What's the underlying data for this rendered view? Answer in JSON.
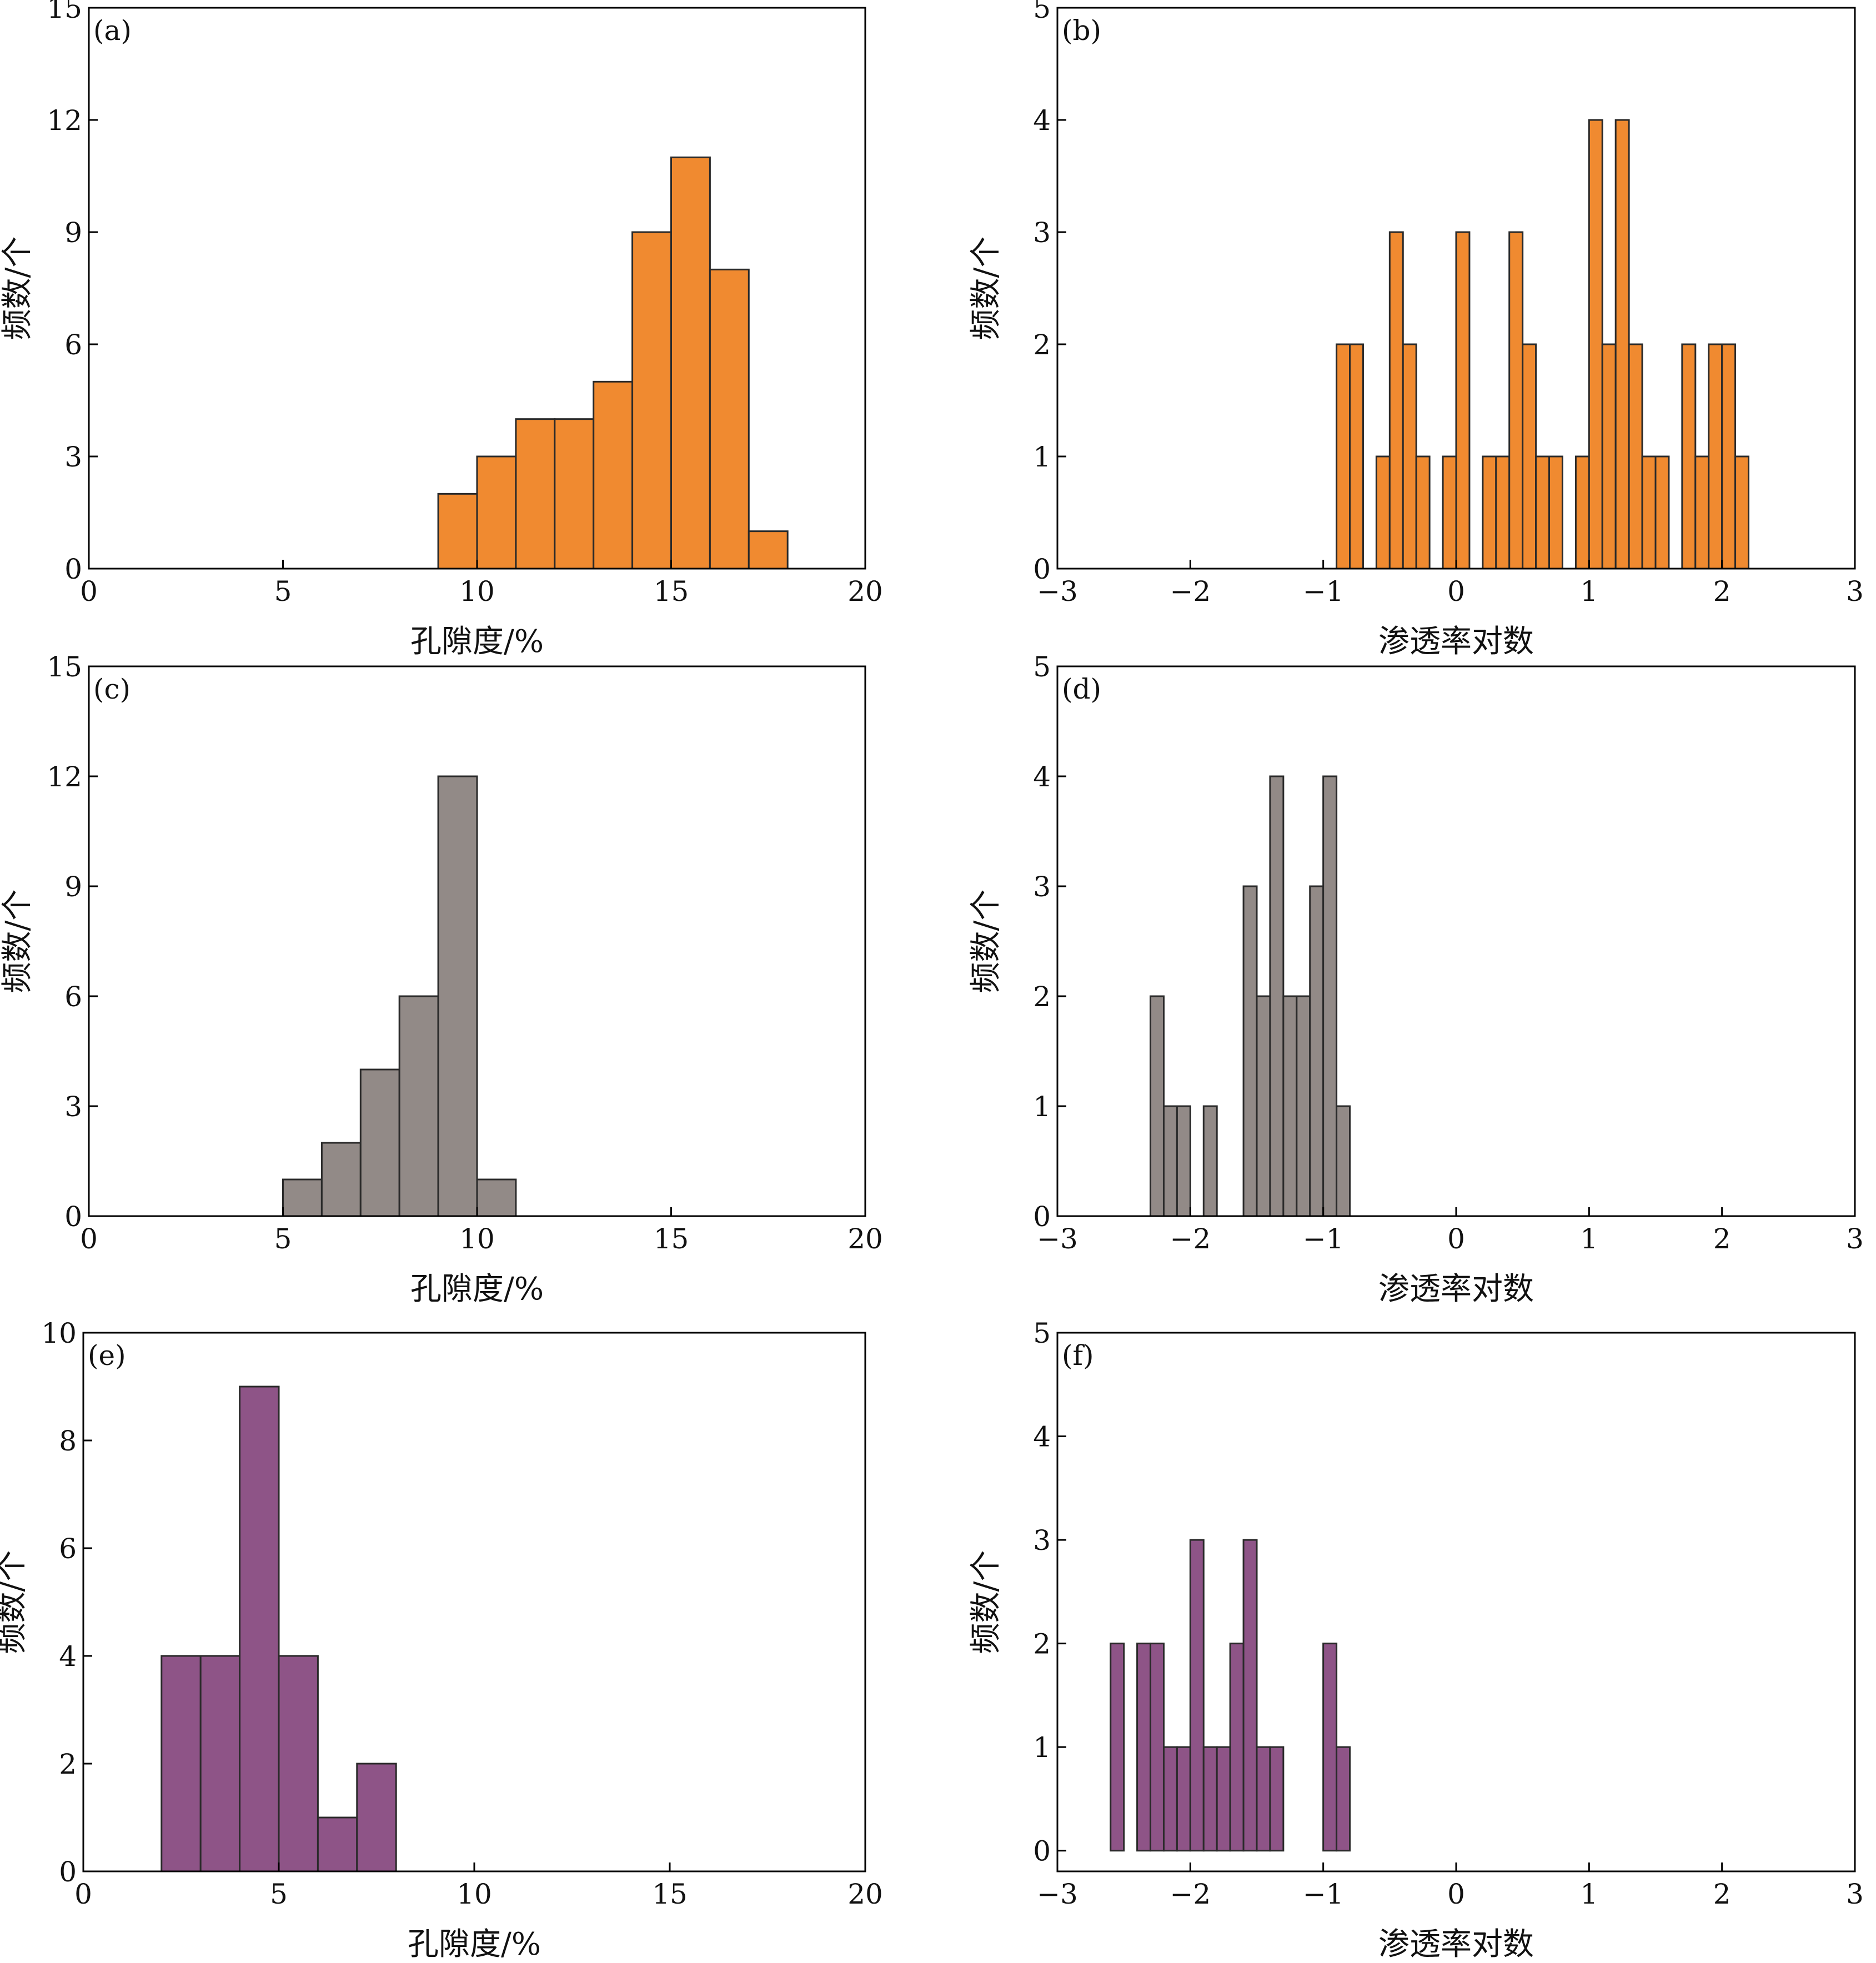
{
  "chart_data": [
    {
      "panel": "(a)",
      "type": "bar",
      "kind": "histogram",
      "xlabel": "孔隙度/%",
      "ylabel": "频数/个",
      "xlim": [
        0,
        20
      ],
      "ylim": [
        0,
        15
      ],
      "xticks": [
        0,
        5,
        10,
        15,
        20
      ],
      "yticks": [
        0,
        3,
        6,
        9,
        12,
        15
      ],
      "color": "#F08A30",
      "bins": [
        [
          9,
          10,
          2
        ],
        [
          10,
          11,
          3
        ],
        [
          11,
          12,
          4
        ],
        [
          12,
          13,
          4
        ],
        [
          13,
          14,
          5
        ],
        [
          14,
          15,
          9
        ],
        [
          15,
          16,
          11
        ],
        [
          16,
          17,
          8
        ],
        [
          17,
          18,
          1
        ]
      ]
    },
    {
      "panel": "(b)",
      "type": "bar",
      "kind": "histogram",
      "xlabel": "渗透率对数",
      "ylabel": "频数/个",
      "xlim": [
        -3,
        3
      ],
      "ylim": [
        0,
        5
      ],
      "xticks": [
        -3,
        -2,
        -1,
        0,
        1,
        2,
        3
      ],
      "yticks": [
        0,
        1,
        2,
        3,
        4,
        5
      ],
      "color": "#F08A30",
      "bins": [
        [
          -0.9,
          -0.8,
          2
        ],
        [
          -0.8,
          -0.7,
          2
        ],
        [
          -0.6,
          -0.5,
          1
        ],
        [
          -0.5,
          -0.4,
          3
        ],
        [
          -0.4,
          -0.3,
          2
        ],
        [
          -0.3,
          -0.2,
          1
        ],
        [
          -0.1,
          0.0,
          1
        ],
        [
          0.0,
          0.1,
          3
        ],
        [
          0.2,
          0.3,
          1
        ],
        [
          0.3,
          0.4,
          1
        ],
        [
          0.4,
          0.5,
          3
        ],
        [
          0.5,
          0.6,
          2
        ],
        [
          0.6,
          0.7,
          1
        ],
        [
          0.7,
          0.8,
          1
        ],
        [
          0.9,
          1.0,
          1
        ],
        [
          1.0,
          1.1,
          4
        ],
        [
          1.1,
          1.2,
          2
        ],
        [
          1.2,
          1.3,
          4
        ],
        [
          1.3,
          1.4,
          2
        ],
        [
          1.4,
          1.5,
          1
        ],
        [
          1.5,
          1.6,
          1
        ],
        [
          1.7,
          1.8,
          2
        ],
        [
          1.8,
          1.9,
          1
        ],
        [
          1.9,
          2.0,
          2
        ],
        [
          2.0,
          2.1,
          2
        ],
        [
          2.1,
          2.2,
          1
        ]
      ]
    },
    {
      "panel": "(c)",
      "type": "bar",
      "kind": "histogram",
      "xlabel": "孔隙度/%",
      "ylabel": "频数/个",
      "xlim": [
        0,
        20
      ],
      "ylim": [
        0,
        15
      ],
      "xticks": [
        0,
        5,
        10,
        15,
        20
      ],
      "yticks": [
        0,
        3,
        6,
        9,
        12,
        15
      ],
      "color": "#928A87",
      "bins": [
        [
          5,
          6,
          1
        ],
        [
          6,
          7,
          2
        ],
        [
          7,
          8,
          4
        ],
        [
          8,
          9,
          6
        ],
        [
          9,
          10,
          12
        ],
        [
          10,
          11,
          1
        ]
      ]
    },
    {
      "panel": "(d)",
      "type": "bar",
      "kind": "histogram",
      "xlabel": "渗透率对数",
      "ylabel": "频数/个",
      "xlim": [
        -3,
        3
      ],
      "ylim": [
        0,
        5
      ],
      "xticks": [
        -3,
        -2,
        -1,
        0,
        1,
        2,
        3
      ],
      "yticks": [
        0,
        1,
        2,
        3,
        4,
        5
      ],
      "color": "#928A87",
      "bins": [
        [
          -2.3,
          -2.2,
          2
        ],
        [
          -2.2,
          -2.1,
          1
        ],
        [
          -2.1,
          -2.0,
          1
        ],
        [
          -1.9,
          -1.8,
          1
        ],
        [
          -1.6,
          -1.5,
          3
        ],
        [
          -1.5,
          -1.4,
          2
        ],
        [
          -1.4,
          -1.3,
          4
        ],
        [
          -1.3,
          -1.2,
          2
        ],
        [
          -1.2,
          -1.1,
          2
        ],
        [
          -1.1,
          -1.0,
          3
        ],
        [
          -1.0,
          -0.9,
          4
        ],
        [
          -0.9,
          -0.8,
          1
        ]
      ]
    },
    {
      "panel": "(e)",
      "type": "bar",
      "kind": "histogram",
      "xlabel": "孔隙度/%",
      "ylabel": "频数/个",
      "xlim": [
        0,
        20
      ],
      "ylim": [
        0,
        10
      ],
      "xticks": [
        0,
        5,
        10,
        15,
        20
      ],
      "yticks": [
        0,
        2,
        4,
        6,
        8,
        10
      ],
      "color": "#8E5487",
      "bins": [
        [
          2,
          3,
          4
        ],
        [
          3,
          4,
          4
        ],
        [
          4,
          5,
          9
        ],
        [
          5,
          6,
          4
        ],
        [
          6,
          7,
          1
        ],
        [
          7,
          8,
          2
        ]
      ]
    },
    {
      "panel": "(f)",
      "type": "bar",
      "kind": "histogram",
      "xlabel": "渗透率对数",
      "ylabel": "频数/个",
      "xlim": [
        -3,
        3
      ],
      "ylim": [
        -0.2,
        5
      ],
      "xticks": [
        -3,
        -2,
        -1,
        0,
        1,
        2,
        3
      ],
      "yticks": [
        0,
        1,
        2,
        3,
        4,
        5
      ],
      "color": "#8E5487",
      "bins": [
        [
          -2.6,
          -2.5,
          2
        ],
        [
          -2.4,
          -2.3,
          2
        ],
        [
          -2.3,
          -2.2,
          2
        ],
        [
          -2.2,
          -2.1,
          1
        ],
        [
          -2.1,
          -2.0,
          1
        ],
        [
          -2.0,
          -1.9,
          3
        ],
        [
          -1.9,
          -1.8,
          1
        ],
        [
          -1.8,
          -1.7,
          1
        ],
        [
          -1.7,
          -1.6,
          2
        ],
        [
          -1.6,
          -1.5,
          3
        ],
        [
          -1.5,
          -1.4,
          1
        ],
        [
          -1.4,
          -1.3,
          1
        ],
        [
          -1.0,
          -0.9,
          2
        ],
        [
          -0.9,
          -0.8,
          1
        ]
      ]
    }
  ]
}
